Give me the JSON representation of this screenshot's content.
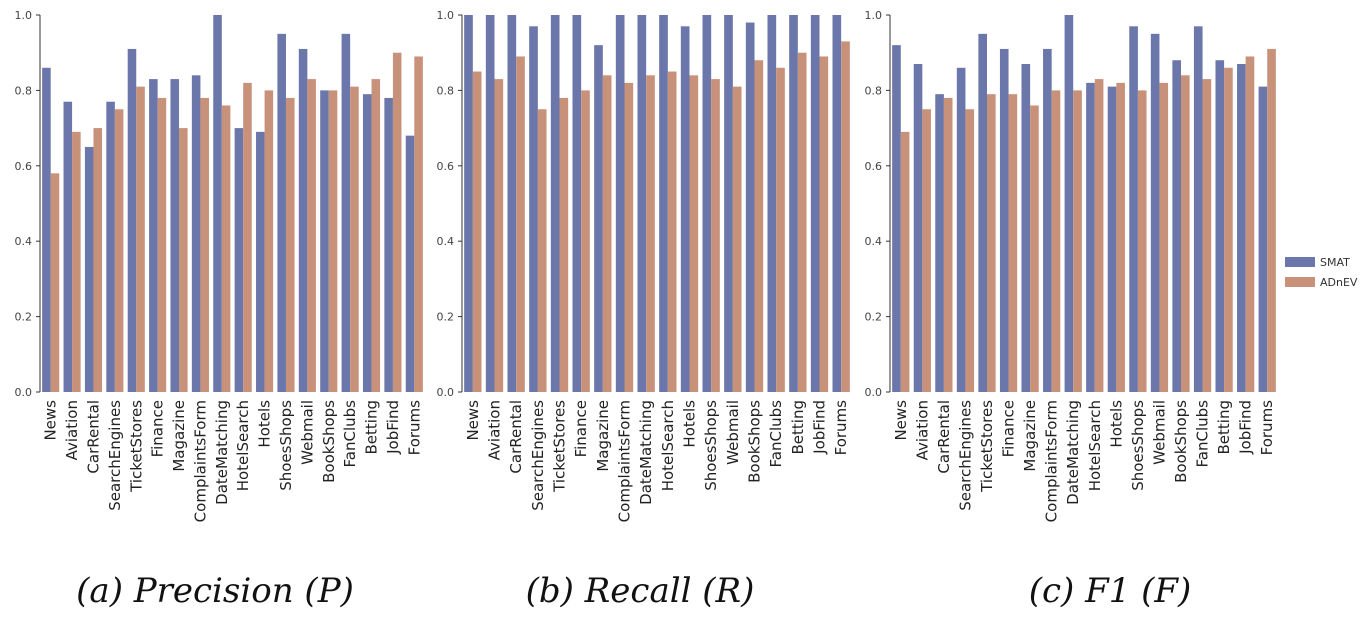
{
  "legend": [
    {
      "name": "SMAT",
      "color": "#6b76aa"
    },
    {
      "name": "ADnEV",
      "color": "#c8917a"
    }
  ],
  "chart_data": [
    {
      "type": "bar",
      "caption": "(a) Precision (P)",
      "title": "",
      "xlabel": "",
      "ylabel": "",
      "ylim": [
        0,
        1.0
      ],
      "yticks": [
        "0.0",
        "0.2",
        "0.4",
        "0.6",
        "0.8",
        "1.0"
      ],
      "categories": [
        "News",
        "Aviation",
        "CarRental",
        "SearchEngines",
        "TicketStores",
        "Finance",
        "Magazine",
        "ComplaintsForm",
        "DateMatching",
        "HotelSearch",
        "Hotels",
        "ShoesShops",
        "Webmail",
        "BookShops",
        "FanClubs",
        "Betting",
        "JobFind",
        "Forums"
      ],
      "series": [
        {
          "name": "SMAT",
          "values": [
            0.86,
            0.77,
            0.65,
            0.77,
            0.91,
            0.83,
            0.83,
            0.84,
            1.0,
            0.7,
            0.69,
            0.95,
            0.91,
            0.8,
            0.95,
            0.79,
            0.78,
            0.68
          ]
        },
        {
          "name": "ADnEV",
          "values": [
            0.58,
            0.69,
            0.7,
            0.75,
            0.81,
            0.78,
            0.7,
            0.78,
            0.76,
            0.82,
            0.8,
            0.78,
            0.83,
            0.8,
            0.81,
            0.83,
            0.9,
            0.89
          ]
        }
      ]
    },
    {
      "type": "bar",
      "caption": "(b) Recall (R)",
      "title": "",
      "xlabel": "",
      "ylabel": "",
      "ylim": [
        0,
        1.0
      ],
      "yticks": [
        "0.0",
        "0.2",
        "0.4",
        "0.6",
        "0.8",
        "1.0"
      ],
      "categories": [
        "News",
        "Aviation",
        "CarRental",
        "SearchEngines",
        "TicketStores",
        "Finance",
        "Magazine",
        "ComplaintsForm",
        "DateMatching",
        "HotelSearch",
        "Hotels",
        "ShoesShops",
        "Webmail",
        "BookShops",
        "FanClubs",
        "Betting",
        "JobFind",
        "Forums"
      ],
      "series": [
        {
          "name": "SMAT",
          "values": [
            1.0,
            1.0,
            1.0,
            0.97,
            1.0,
            1.0,
            0.92,
            1.0,
            1.0,
            1.0,
            0.97,
            1.0,
            1.0,
            0.98,
            1.0,
            1.0,
            1.0,
            1.0
          ]
        },
        {
          "name": "ADnEV",
          "values": [
            0.85,
            0.83,
            0.89,
            0.75,
            0.78,
            0.8,
            0.84,
            0.82,
            0.84,
            0.85,
            0.84,
            0.83,
            0.81,
            0.88,
            0.86,
            0.9,
            0.89,
            0.93
          ]
        }
      ]
    },
    {
      "type": "bar",
      "caption": "(c) F1 (F)",
      "title": "",
      "xlabel": "",
      "ylabel": "",
      "ylim": [
        0,
        1.0
      ],
      "yticks": [
        "0.0",
        "0.2",
        "0.4",
        "0.6",
        "0.8",
        "1.0"
      ],
      "categories": [
        "News",
        "Aviation",
        "CarRental",
        "SearchEngines",
        "TicketStores",
        "Finance",
        "Magazine",
        "ComplaintsForm",
        "DateMatching",
        "HotelSearch",
        "Hotels",
        "ShoesShops",
        "Webmail",
        "BookShops",
        "FanClubs",
        "Betting",
        "JobFind",
        "Forums"
      ],
      "series": [
        {
          "name": "SMAT",
          "values": [
            0.92,
            0.87,
            0.79,
            0.86,
            0.95,
            0.91,
            0.87,
            0.91,
            1.0,
            0.82,
            0.81,
            0.97,
            0.95,
            0.88,
            0.97,
            0.88,
            0.87,
            0.81
          ]
        },
        {
          "name": "ADnEV",
          "values": [
            0.69,
            0.75,
            0.78,
            0.75,
            0.79,
            0.79,
            0.76,
            0.8,
            0.8,
            0.83,
            0.82,
            0.8,
            0.82,
            0.84,
            0.83,
            0.86,
            0.89,
            0.91
          ]
        }
      ]
    }
  ]
}
